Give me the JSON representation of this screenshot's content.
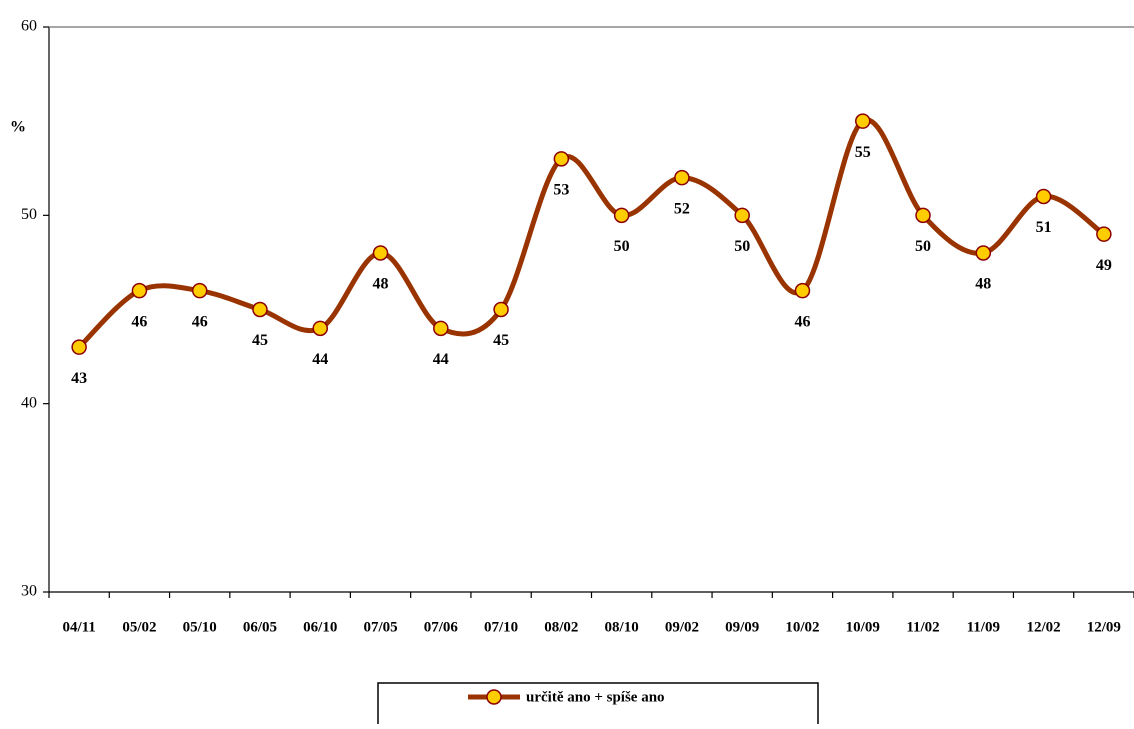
{
  "chart_data": {
    "type": "line",
    "y_label": "%",
    "categories": [
      "04/11",
      "05/02",
      "05/10",
      "06/05",
      "06/10",
      "07/05",
      "07/06",
      "07/10",
      "08/02",
      "08/10",
      "09/02",
      "09/09",
      "10/02",
      "10/09",
      "11/02",
      "11/09",
      "12/02",
      "12/09"
    ],
    "series": [
      {
        "name": "určitě ano + spíše ano",
        "color": "#993300",
        "marker_color": "#ffcc00",
        "values": [
          43,
          46,
          46,
          45,
          44,
          48,
          44,
          45,
          53,
          50,
          52,
          50,
          46,
          55,
          50,
          48,
          51,
          49
        ]
      }
    ],
    "ylim": [
      30,
      60
    ],
    "yticks": [
      30,
      40,
      50,
      60
    ]
  }
}
